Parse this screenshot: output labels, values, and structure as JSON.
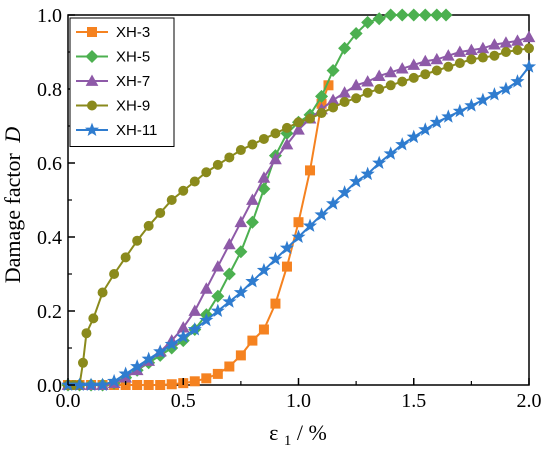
{
  "chart_data": {
    "type": "line",
    "ylabel": "Damage factor",
    "ylabel_symbol": "D",
    "xlabel_base": "ε",
    "xlabel_sub": "1",
    "xlabel_suffix": " / %",
    "xlim": [
      0,
      2.0
    ],
    "ylim": [
      0,
      1.0
    ],
    "x_ticks": [
      "0.0",
      "0.5",
      "1.0",
      "1.5",
      "2.0"
    ],
    "y_ticks": [
      "0.0",
      "0.2",
      "0.4",
      "0.6",
      "0.8",
      "1.0"
    ],
    "x_tick_values": [
      0,
      0.5,
      1.0,
      1.5,
      2.0
    ],
    "y_tick_values": [
      0,
      0.2,
      0.4,
      0.6,
      0.8,
      1.0
    ],
    "grid": false,
    "legend_position": "top-left",
    "series": [
      {
        "name": "XH-3",
        "color": "#f58220",
        "marker": "square",
        "points": [
          [
            0.0,
            0.0
          ],
          [
            0.05,
            0.0
          ],
          [
            0.1,
            0.0
          ],
          [
            0.15,
            0.0
          ],
          [
            0.2,
            0.0
          ],
          [
            0.25,
            0.0
          ],
          [
            0.3,
            0.0
          ],
          [
            0.35,
            0.0
          ],
          [
            0.4,
            0.0
          ],
          [
            0.45,
            0.002
          ],
          [
            0.5,
            0.005
          ],
          [
            0.55,
            0.01
          ],
          [
            0.6,
            0.018
          ],
          [
            0.65,
            0.03
          ],
          [
            0.7,
            0.05
          ],
          [
            0.75,
            0.08
          ],
          [
            0.8,
            0.12
          ],
          [
            0.85,
            0.15
          ],
          [
            0.9,
            0.22
          ],
          [
            0.95,
            0.32
          ],
          [
            1.0,
            0.44
          ],
          [
            1.05,
            0.58
          ],
          [
            1.1,
            0.76
          ],
          [
            1.13,
            0.81
          ]
        ]
      },
      {
        "name": "XH-5",
        "color": "#4cb050",
        "marker": "diamond",
        "points": [
          [
            0.0,
            0.0
          ],
          [
            0.05,
            0.0
          ],
          [
            0.1,
            0.0
          ],
          [
            0.15,
            0.0
          ],
          [
            0.2,
            0.005
          ],
          [
            0.25,
            0.02
          ],
          [
            0.3,
            0.04
          ],
          [
            0.35,
            0.06
          ],
          [
            0.4,
            0.08
          ],
          [
            0.45,
            0.1
          ],
          [
            0.5,
            0.12
          ],
          [
            0.55,
            0.15
          ],
          [
            0.6,
            0.19
          ],
          [
            0.65,
            0.24
          ],
          [
            0.7,
            0.3
          ],
          [
            0.75,
            0.36
          ],
          [
            0.8,
            0.44
          ],
          [
            0.85,
            0.53
          ],
          [
            0.9,
            0.62
          ],
          [
            0.95,
            0.68
          ],
          [
            1.0,
            0.71
          ],
          [
            1.05,
            0.73
          ],
          [
            1.1,
            0.78
          ],
          [
            1.15,
            0.85
          ],
          [
            1.2,
            0.91
          ],
          [
            1.25,
            0.95
          ],
          [
            1.3,
            0.98
          ],
          [
            1.35,
            0.99
          ],
          [
            1.4,
            1.0
          ],
          [
            1.45,
            1.0
          ],
          [
            1.5,
            1.0
          ],
          [
            1.55,
            1.0
          ],
          [
            1.6,
            1.0
          ],
          [
            1.64,
            1.0
          ]
        ]
      },
      {
        "name": "XH-7",
        "color": "#8e5aa8",
        "marker": "triangle",
        "points": [
          [
            0.0,
            0.0
          ],
          [
            0.05,
            0.0
          ],
          [
            0.1,
            0.0
          ],
          [
            0.15,
            0.0
          ],
          [
            0.2,
            0.005
          ],
          [
            0.25,
            0.02
          ],
          [
            0.3,
            0.04
          ],
          [
            0.35,
            0.065
          ],
          [
            0.4,
            0.09
          ],
          [
            0.45,
            0.12
          ],
          [
            0.5,
            0.155
          ],
          [
            0.55,
            0.2
          ],
          [
            0.6,
            0.26
          ],
          [
            0.65,
            0.32
          ],
          [
            0.7,
            0.38
          ],
          [
            0.75,
            0.44
          ],
          [
            0.8,
            0.5
          ],
          [
            0.85,
            0.56
          ],
          [
            0.9,
            0.61
          ],
          [
            0.95,
            0.65
          ],
          [
            1.0,
            0.69
          ],
          [
            1.05,
            0.72
          ],
          [
            1.1,
            0.745
          ],
          [
            1.15,
            0.77
          ],
          [
            1.2,
            0.79
          ],
          [
            1.25,
            0.81
          ],
          [
            1.3,
            0.82
          ],
          [
            1.35,
            0.835
          ],
          [
            1.4,
            0.845
          ],
          [
            1.45,
            0.855
          ],
          [
            1.5,
            0.865
          ],
          [
            1.55,
            0.875
          ],
          [
            1.6,
            0.88
          ],
          [
            1.65,
            0.89
          ],
          [
            1.7,
            0.9
          ],
          [
            1.75,
            0.905
          ],
          [
            1.8,
            0.91
          ],
          [
            1.85,
            0.92
          ],
          [
            1.9,
            0.925
          ],
          [
            1.95,
            0.93
          ],
          [
            2.0,
            0.94
          ]
        ]
      },
      {
        "name": "XH-9",
        "color": "#8a8a1c",
        "marker": "circle",
        "points": [
          [
            0.0,
            0.0
          ],
          [
            0.025,
            0.0
          ],
          [
            0.05,
            0.0
          ],
          [
            0.065,
            0.06
          ],
          [
            0.08,
            0.14
          ],
          [
            0.11,
            0.18
          ],
          [
            0.15,
            0.25
          ],
          [
            0.2,
            0.3
          ],
          [
            0.25,
            0.345
          ],
          [
            0.3,
            0.39
          ],
          [
            0.35,
            0.43
          ],
          [
            0.4,
            0.465
          ],
          [
            0.45,
            0.5
          ],
          [
            0.5,
            0.525
          ],
          [
            0.55,
            0.55
          ],
          [
            0.6,
            0.575
          ],
          [
            0.65,
            0.595
          ],
          [
            0.7,
            0.615
          ],
          [
            0.75,
            0.635
          ],
          [
            0.8,
            0.65
          ],
          [
            0.85,
            0.665
          ],
          [
            0.9,
            0.68
          ],
          [
            0.95,
            0.695
          ],
          [
            1.0,
            0.71
          ],
          [
            1.05,
            0.72
          ],
          [
            1.1,
            0.735
          ],
          [
            1.15,
            0.75
          ],
          [
            1.2,
            0.765
          ],
          [
            1.25,
            0.775
          ],
          [
            1.3,
            0.79
          ],
          [
            1.35,
            0.8
          ],
          [
            1.4,
            0.81
          ],
          [
            1.45,
            0.82
          ],
          [
            1.5,
            0.83
          ],
          [
            1.55,
            0.84
          ],
          [
            1.6,
            0.85
          ],
          [
            1.65,
            0.86
          ],
          [
            1.7,
            0.87
          ],
          [
            1.75,
            0.88
          ],
          [
            1.8,
            0.885
          ],
          [
            1.85,
            0.89
          ],
          [
            1.9,
            0.9
          ],
          [
            1.95,
            0.905
          ],
          [
            2.0,
            0.91
          ]
        ]
      },
      {
        "name": "XH-11",
        "color": "#2f7ccf",
        "marker": "star",
        "points": [
          [
            0.0,
            0.0
          ],
          [
            0.05,
            0.0
          ],
          [
            0.1,
            0.0
          ],
          [
            0.15,
            0.0
          ],
          [
            0.2,
            0.01
          ],
          [
            0.25,
            0.03
          ],
          [
            0.3,
            0.05
          ],
          [
            0.35,
            0.07
          ],
          [
            0.4,
            0.09
          ],
          [
            0.45,
            0.11
          ],
          [
            0.5,
            0.13
          ],
          [
            0.55,
            0.15
          ],
          [
            0.6,
            0.175
          ],
          [
            0.65,
            0.2
          ],
          [
            0.7,
            0.225
          ],
          [
            0.75,
            0.25
          ],
          [
            0.8,
            0.28
          ],
          [
            0.85,
            0.31
          ],
          [
            0.9,
            0.34
          ],
          [
            0.95,
            0.37
          ],
          [
            1.0,
            0.4
          ],
          [
            1.05,
            0.43
          ],
          [
            1.1,
            0.46
          ],
          [
            1.15,
            0.49
          ],
          [
            1.2,
            0.52
          ],
          [
            1.25,
            0.55
          ],
          [
            1.3,
            0.57
          ],
          [
            1.35,
            0.6
          ],
          [
            1.4,
            0.625
          ],
          [
            1.45,
            0.65
          ],
          [
            1.5,
            0.67
          ],
          [
            1.55,
            0.69
          ],
          [
            1.6,
            0.71
          ],
          [
            1.65,
            0.725
          ],
          [
            1.7,
            0.74
          ],
          [
            1.75,
            0.755
          ],
          [
            1.8,
            0.77
          ],
          [
            1.85,
            0.785
          ],
          [
            1.9,
            0.8
          ],
          [
            1.95,
            0.82
          ],
          [
            2.0,
            0.86
          ]
        ]
      }
    ]
  }
}
